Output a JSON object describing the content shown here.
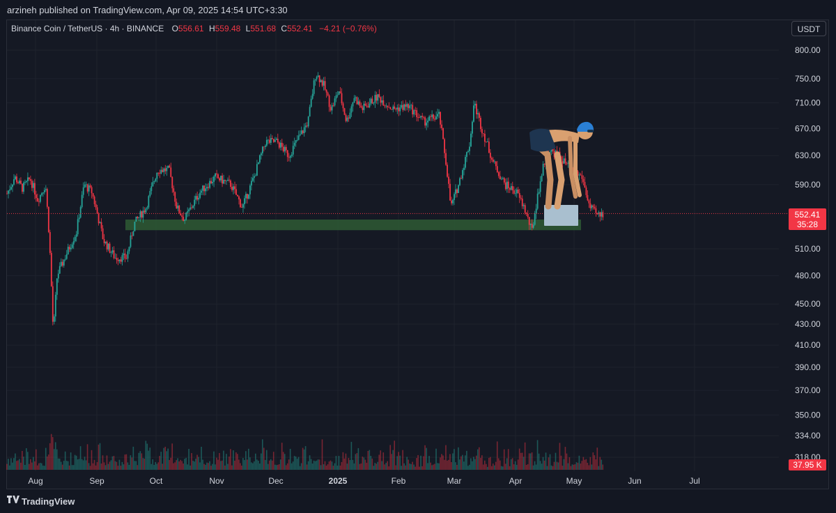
{
  "header": {
    "published": "arzineh published on TradingView.com, Apr 09, 2025 14:54 UTC+3:30"
  },
  "legend": {
    "symbol": "Binance Coin / TetherUS · 4h · BINANCE",
    "o_label": "O",
    "o_value": "556.61",
    "h_label": "H",
    "h_value": "559.48",
    "l_label": "L",
    "l_value": "551.68",
    "c_label": "C",
    "c_value": "552.41",
    "change": "−4.21 (−0.76%)"
  },
  "currency_button": "USDT",
  "price_tag": {
    "price": "552.41",
    "countdown": "35:28"
  },
  "volume_tag": "37.95 K",
  "footer": {
    "brand": "TradingView"
  },
  "colors": {
    "up": "#26a69a",
    "down": "#f23645",
    "zone": "#2e5b34",
    "background": "#151924"
  },
  "chart_data": {
    "type": "candlestick",
    "title": "Binance Coin / TetherUS · 4h · BINANCE",
    "y_ticks": [
      "800.00",
      "750.00",
      "710.00",
      "670.00",
      "630.00",
      "590.00",
      "510.00",
      "480.00",
      "450.00",
      "430.00",
      "410.00",
      "390.00",
      "370.00",
      "350.00",
      "334.00",
      "318.00"
    ],
    "x_ticks": [
      "Aug",
      "Sep",
      "Oct",
      "Nov",
      "Dec",
      "2025",
      "Feb",
      "Mar",
      "Apr",
      "May",
      "Jun",
      "Jul"
    ],
    "y_scale": "log",
    "last_price": 552.41,
    "support_zone": {
      "from": 532,
      "to": 545
    },
    "closes": [
      [
        0,
        578
      ],
      [
        0.01,
        600
      ],
      [
        0.02,
        585
      ],
      [
        0.03,
        598
      ],
      [
        0.04,
        570
      ],
      [
        0.05,
        590
      ],
      [
        0.055,
        520
      ],
      [
        0.06,
        420
      ],
      [
        0.065,
        480
      ],
      [
        0.075,
        500
      ],
      [
        0.09,
        530
      ],
      [
        0.1,
        590
      ],
      [
        0.11,
        580
      ],
      [
        0.125,
        520
      ],
      [
        0.14,
        500
      ],
      [
        0.155,
        500
      ],
      [
        0.165,
        540
      ],
      [
        0.18,
        560
      ],
      [
        0.195,
        610
      ],
      [
        0.21,
        610
      ],
      [
        0.22,
        560
      ],
      [
        0.23,
        545
      ],
      [
        0.25,
        580
      ],
      [
        0.27,
        600
      ],
      [
        0.29,
        590
      ],
      [
        0.305,
        560
      ],
      [
        0.32,
        600
      ],
      [
        0.335,
        650
      ],
      [
        0.35,
        650
      ],
      [
        0.365,
        630
      ],
      [
        0.38,
        660
      ],
      [
        0.39,
        680
      ],
      [
        0.4,
        760
      ],
      [
        0.41,
        740
      ],
      [
        0.42,
        700
      ],
      [
        0.43,
        730
      ],
      [
        0.44,
        680
      ],
      [
        0.45,
        720
      ],
      [
        0.46,
        700
      ],
      [
        0.48,
        720
      ],
      [
        0.5,
        700
      ],
      [
        0.52,
        705
      ],
      [
        0.54,
        680
      ],
      [
        0.56,
        690
      ],
      [
        0.57,
        610
      ],
      [
        0.575,
        560
      ],
      [
        0.585,
        590
      ],
      [
        0.6,
        650
      ],
      [
        0.605,
        710
      ],
      [
        0.615,
        670
      ],
      [
        0.63,
        620
      ],
      [
        0.645,
        590
      ],
      [
        0.66,
        580
      ],
      [
        0.67,
        560
      ],
      [
        0.68,
        530
      ],
      [
        0.69,
        590
      ],
      [
        0.7,
        640
      ],
      [
        0.715,
        630
      ],
      [
        0.73,
        610
      ],
      [
        0.745,
        600
      ],
      [
        0.755,
        560
      ],
      [
        0.765,
        550
      ],
      [
        0.772,
        552.41
      ]
    ]
  }
}
